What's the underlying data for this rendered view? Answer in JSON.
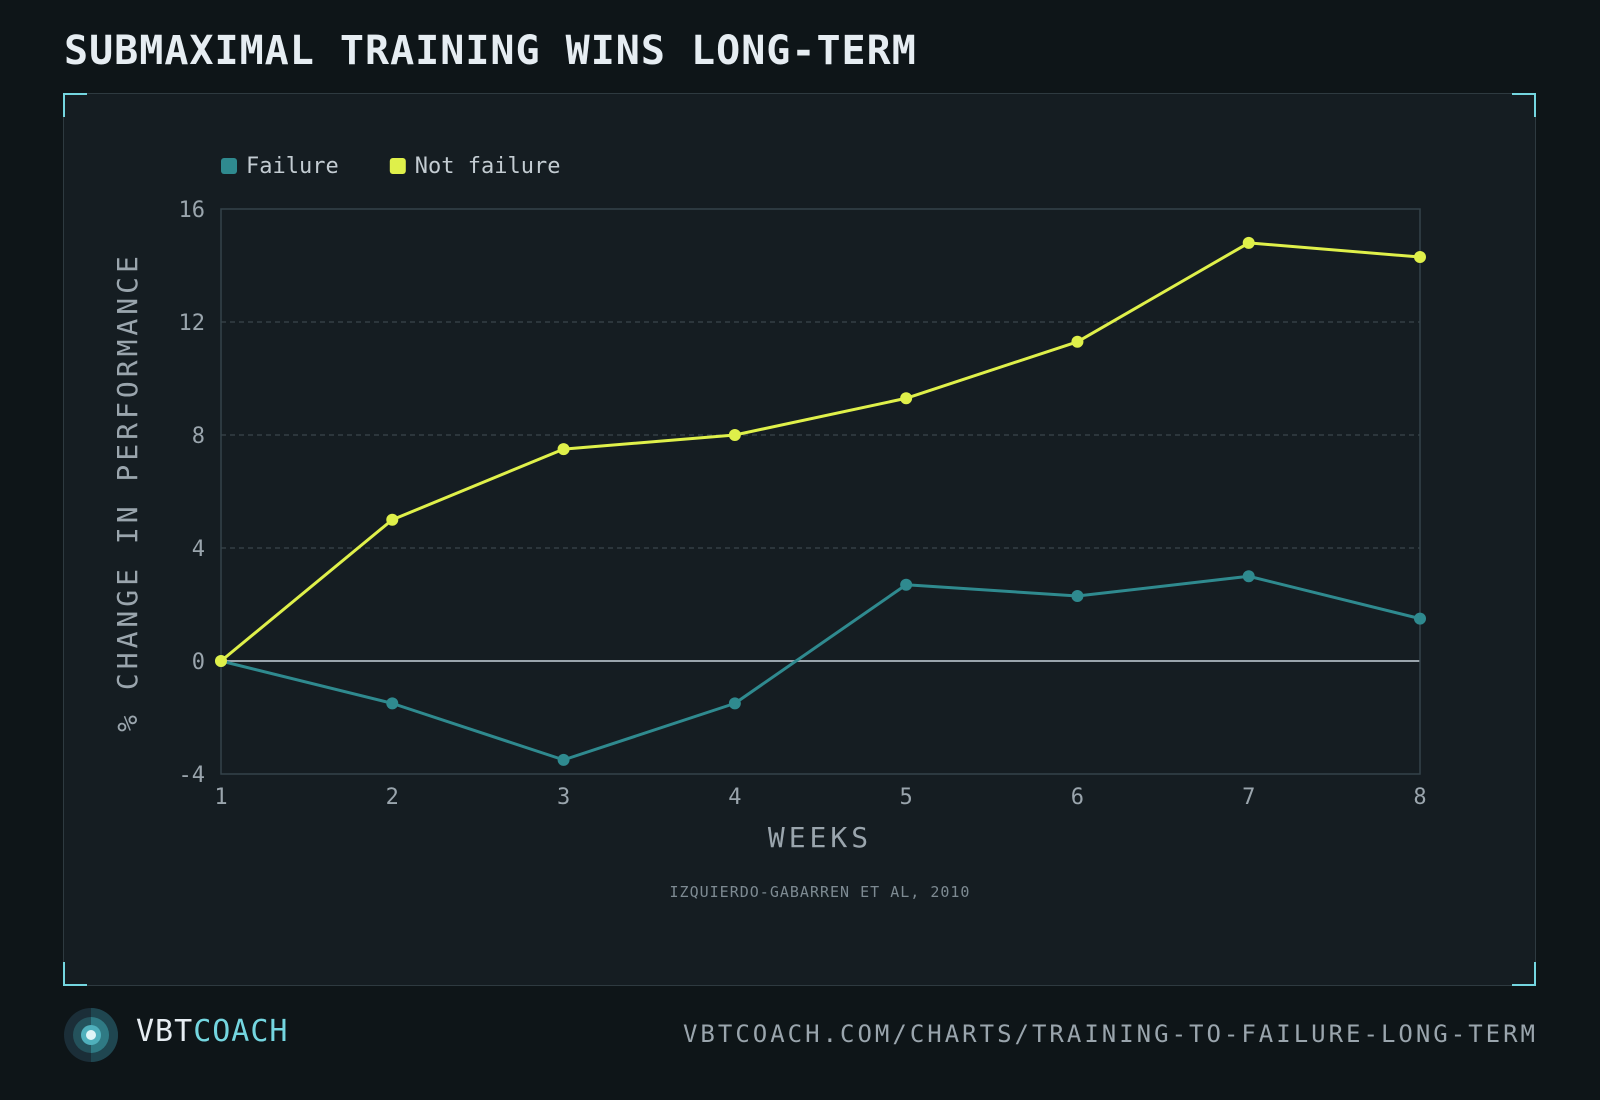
{
  "title": "SUBMAXIMAL TRAINING WINS LONG-TERM",
  "colors": {
    "background": "#0e1518",
    "panel": "#151d22",
    "accent": "#74d6e0",
    "failure": "#2f8a8f",
    "not_failure": "#dff04a"
  },
  "chart_data": {
    "type": "line",
    "xlabel": "WEEKS",
    "ylabel": "% CHANGE IN PERFORMANCE",
    "x": [
      1,
      2,
      3,
      4,
      5,
      6,
      7,
      8
    ],
    "xlim": [
      1,
      8
    ],
    "ylim": [
      -4,
      16
    ],
    "yticks": [
      -4,
      0,
      4,
      8,
      12,
      16
    ],
    "grid": "horizontal dashed",
    "legend_position": "top-left",
    "series": [
      {
        "name": "Failure",
        "color": "#2f8a8f",
        "values": [
          0,
          -1.5,
          -3.5,
          -1.5,
          2.7,
          2.3,
          3.0,
          1.5
        ]
      },
      {
        "name": "Not failure",
        "color": "#dff04a",
        "values": [
          0,
          5.0,
          7.5,
          8.0,
          9.3,
          11.3,
          14.8,
          14.3
        ]
      }
    ],
    "source": "IZQUIERDO-GABARREN ET AL, 2010"
  },
  "footer": {
    "brand_part1": "VBT",
    "brand_part2": "COACH",
    "url": "VBTCOACH.COM/CHARTS/TRAINING-TO-FAILURE-LONG-TERM",
    "logo_icon": "vbtcoach-logo-icon"
  }
}
